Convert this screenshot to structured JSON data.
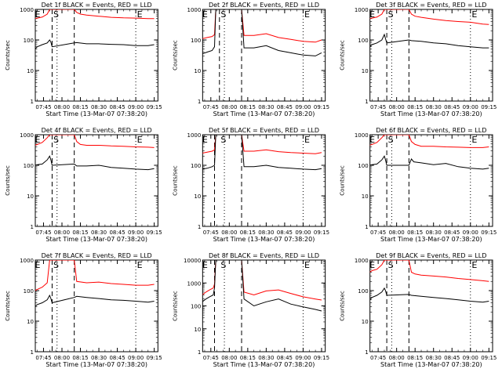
{
  "time_ticks": [
    "07:45",
    "08:00",
    "08:15",
    "08:30",
    "08:45",
    "09:00",
    "09:15"
  ],
  "y_ticks": [
    "1",
    "10",
    "100",
    "1000"
  ],
  "y_ticks_p8": [
    "1",
    "10",
    "100",
    "1000",
    "10000"
  ],
  "colors": {
    "events": "#000000",
    "lld": "#ff0000"
  },
  "chart_data": [
    {
      "type": "line",
      "scale": "log",
      "title": "Det 1f BLACK = Events, RED = LLD",
      "xlabel": "Start Time (13-Mar-07 07:38:20)",
      "ylabel": "Counts/sec",
      "ylim": [
        1,
        1000
      ],
      "markers": {
        "E": [
          "07:38",
          "09:01"
        ],
        "S": "07:53"
      },
      "dashed_lines": [
        "07:52",
        "08:10"
      ],
      "dotted_lines": [
        "07:56",
        "09:00"
      ],
      "series": [
        {
          "name": "Events",
          "x": [
            "07:38",
            "07:40",
            "07:44",
            "07:48",
            "07:50",
            "07:51",
            "07:52",
            "08:10",
            "08:12",
            "08:20",
            "08:30",
            "08:40",
            "08:50",
            "09:00",
            "09:10",
            "09:15"
          ],
          "values": [
            50,
            60,
            70,
            80,
            100,
            85,
            60,
            80,
            82,
            75,
            75,
            72,
            70,
            65,
            65,
            70
          ]
        },
        {
          "name": "LLD",
          "x": [
            "07:38",
            "07:40",
            "07:44",
            "07:48",
            "07:50",
            "07:51",
            "07:52",
            "08:10",
            "08:12",
            "08:15",
            "08:20",
            "08:30",
            "08:40",
            "08:50",
            "09:00",
            "09:10",
            "09:15"
          ],
          "values": [
            500,
            520,
            560,
            700,
            1000,
            1000,
            1000,
            1000,
            800,
            700,
            650,
            600,
            550,
            530,
            520,
            500,
            500
          ]
        }
      ]
    },
    {
      "type": "line",
      "scale": "log",
      "title": "Det 2f BLACK = Events, RED = LLD",
      "xlabel": "Start Time (13-Mar-07 07:38:20)",
      "ylabel": "Counts/sec",
      "ylim": [
        1,
        1000
      ],
      "markers": {
        "E": [
          "07:38",
          "09:01"
        ],
        "S": "07:53"
      },
      "dashed_lines": [
        "07:52",
        "08:10"
      ],
      "dotted_lines": [
        "07:56",
        "09:00"
      ],
      "series": [
        {
          "name": "Events",
          "x": [
            "07:38",
            "07:42",
            "07:46",
            "07:48",
            "07:49",
            "07:50",
            "08:00",
            "08:10",
            "08:12",
            "08:20",
            "08:30",
            "08:40",
            "08:50",
            "09:00",
            "09:10",
            "09:15"
          ],
          "values": [
            35,
            40,
            45,
            60,
            1000,
            1000,
            1000,
            1000,
            55,
            55,
            65,
            45,
            38,
            32,
            30,
            38
          ]
        },
        {
          "name": "LLD",
          "x": [
            "07:38",
            "07:42",
            "07:46",
            "07:48",
            "07:49",
            "07:50",
            "08:00",
            "08:10",
            "08:12",
            "08:20",
            "08:30",
            "08:40",
            "08:50",
            "09:00",
            "09:10",
            "09:15"
          ],
          "values": [
            110,
            120,
            130,
            150,
            1000,
            1000,
            1000,
            1000,
            140,
            140,
            160,
            120,
            105,
            90,
            85,
            100
          ]
        }
      ]
    },
    {
      "type": "line",
      "scale": "log",
      "title": "Det 3f BLACK = Events, RED = LLD",
      "xlabel": "Start Time (13-Mar-07 07:38:20)",
      "ylabel": "Counts/sec",
      "ylim": [
        1,
        1000
      ],
      "markers": {
        "E": [
          "07:38",
          "09:01"
        ],
        "S": "07:53"
      },
      "dashed_lines": [
        "07:52",
        "08:10"
      ],
      "dotted_lines": [
        "07:56",
        "09:00"
      ],
      "series": [
        {
          "name": "Events",
          "x": [
            "07:38",
            "07:40",
            "07:44",
            "07:48",
            "07:50",
            "07:51",
            "07:52",
            "08:10",
            "08:12",
            "08:20",
            "08:30",
            "08:40",
            "08:50",
            "09:00",
            "09:10",
            "09:15"
          ],
          "values": [
            60,
            70,
            80,
            100,
            150,
            110,
            80,
            100,
            95,
            90,
            80,
            75,
            65,
            60,
            55,
            55
          ]
        },
        {
          "name": "LLD",
          "x": [
            "07:38",
            "07:40",
            "07:44",
            "07:48",
            "07:50",
            "07:51",
            "07:52",
            "08:10",
            "08:12",
            "08:15",
            "08:20",
            "08:30",
            "08:40",
            "08:50",
            "09:00",
            "09:10",
            "09:15"
          ],
          "values": [
            500,
            520,
            560,
            700,
            1000,
            1000,
            1000,
            1000,
            700,
            600,
            550,
            480,
            430,
            400,
            380,
            330,
            320
          ]
        }
      ]
    },
    {
      "type": "line",
      "scale": "log",
      "title": "Det 4f BLACK = Events, RED = LLD",
      "xlabel": "Start Time (13-Mar-07 07:38:20)",
      "ylabel": "Counts/sec",
      "ylim": [
        1,
        1000
      ],
      "markers": {
        "E": [
          "07:38",
          "09:01"
        ],
        "S": "07:53"
      },
      "dashed_lines": [
        "07:52",
        "08:10"
      ],
      "dotted_lines": [
        "07:56",
        "09:00"
      ],
      "series": [
        {
          "name": "Events",
          "x": [
            "07:38",
            "07:40",
            "07:44",
            "07:48",
            "07:50",
            "07:51",
            "07:52",
            "08:10",
            "08:12",
            "08:20",
            "08:30",
            "08:40",
            "08:50",
            "09:00",
            "09:10",
            "09:15"
          ],
          "values": [
            100,
            105,
            110,
            150,
            200,
            150,
            100,
            110,
            95,
            95,
            100,
            85,
            80,
            75,
            72,
            78
          ]
        },
        {
          "name": "LLD",
          "x": [
            "07:38",
            "07:40",
            "07:44",
            "07:48",
            "07:50",
            "07:51",
            "07:52",
            "08:10",
            "08:12",
            "08:15",
            "08:20",
            "08:30",
            "08:40",
            "08:50",
            "09:00",
            "09:10",
            "09:15"
          ],
          "values": [
            450,
            480,
            560,
            800,
            1000,
            1000,
            1000,
            1000,
            600,
            480,
            450,
            450,
            430,
            420,
            400,
            390,
            380
          ]
        }
      ]
    },
    {
      "type": "line",
      "scale": "log",
      "title": "Det 5f BLACK = Events, RED = LLD",
      "xlabel": "Start Time (13-Mar-07 07:38:20)",
      "ylabel": "Counts/sec",
      "ylim": [
        1,
        1000
      ],
      "markers": {
        "E": [
          "07:38",
          "09:01"
        ],
        "S": "07:53"
      },
      "dashed_lines": [
        "07:48",
        "08:10"
      ],
      "dotted_lines": [
        "07:56",
        "09:00"
      ],
      "series": [
        {
          "name": "Events",
          "x": [
            "07:38",
            "07:42",
            "07:46",
            "07:48",
            "07:49",
            "07:50",
            "08:00",
            "08:10",
            "08:12",
            "08:20",
            "08:30",
            "08:40",
            "08:50",
            "09:00",
            "09:10",
            "09:15"
          ],
          "values": [
            75,
            80,
            90,
            100,
            1000,
            1000,
            1000,
            1000,
            90,
            90,
            100,
            85,
            80,
            75,
            72,
            78
          ]
        },
        {
          "name": "LLD",
          "x": [
            "07:38",
            "07:42",
            "07:46",
            "07:48",
            "07:49",
            "07:50",
            "08:00",
            "08:10",
            "08:12",
            "08:20",
            "08:30",
            "08:40",
            "08:50",
            "09:00",
            "09:10",
            "09:15"
          ],
          "values": [
            250,
            270,
            290,
            320,
            1000,
            1000,
            1000,
            1000,
            290,
            290,
            320,
            280,
            260,
            250,
            240,
            260
          ]
        }
      ]
    },
    {
      "type": "line",
      "scale": "log",
      "title": "Det 6f BLACK = Events, RED = LLD",
      "xlabel": "Start Time (13-Mar-07 07:38:20)",
      "ylabel": "Counts/sec",
      "ylim": [
        1,
        1000
      ],
      "markers": {
        "E": [
          "07:38",
          "09:01"
        ],
        "S": "07:53"
      },
      "dashed_lines": [
        "07:52",
        "08:10"
      ],
      "dotted_lines": [
        "07:56",
        "09:00"
      ],
      "series": [
        {
          "name": "Events",
          "x": [
            "07:38",
            "07:40",
            "07:44",
            "07:48",
            "07:50",
            "07:51",
            "07:52",
            "08:10",
            "08:12",
            "08:14",
            "08:20",
            "08:30",
            "08:40",
            "08:50",
            "09:00",
            "09:10",
            "09:15"
          ],
          "values": [
            100,
            105,
            110,
            150,
            200,
            150,
            100,
            100,
            160,
            130,
            120,
            105,
            115,
            90,
            80,
            75,
            80
          ]
        },
        {
          "name": "LLD",
          "x": [
            "07:38",
            "07:40",
            "07:44",
            "07:48",
            "07:50",
            "07:51",
            "07:52",
            "08:10",
            "08:12",
            "08:15",
            "08:20",
            "08:30",
            "08:40",
            "08:50",
            "09:00",
            "09:10",
            "09:15"
          ],
          "values": [
            450,
            480,
            560,
            800,
            1000,
            1000,
            1000,
            1000,
            600,
            480,
            420,
            420,
            400,
            390,
            380,
            380,
            400
          ]
        }
      ]
    },
    {
      "type": "line",
      "scale": "log",
      "title": "Det 7f BLACK = Events, RED = LLD",
      "xlabel": "Start Time (13-Mar-07 07:38:20)",
      "ylabel": "Counts/sec",
      "ylim": [
        1,
        1000
      ],
      "markers": {
        "E": [
          "07:38",
          "09:01"
        ],
        "S": "07:53"
      },
      "dashed_lines": [
        "07:52",
        "08:10"
      ],
      "dotted_lines": [
        "07:56",
        "09:00"
      ],
      "series": [
        {
          "name": "Events",
          "x": [
            "07:38",
            "07:40",
            "07:44",
            "07:48",
            "07:50",
            "07:51",
            "07:52",
            "08:10",
            "08:12",
            "08:20",
            "08:30",
            "08:40",
            "08:50",
            "09:00",
            "09:10",
            "09:15"
          ],
          "values": [
            30,
            35,
            40,
            50,
            70,
            55,
            40,
            60,
            65,
            60,
            55,
            50,
            48,
            45,
            42,
            45
          ]
        },
        {
          "name": "LLD",
          "x": [
            "07:38",
            "07:40",
            "07:44",
            "07:48",
            "07:50",
            "07:51",
            "07:52",
            "08:10",
            "08:12",
            "08:20",
            "08:30",
            "08:40",
            "08:50",
            "09:00",
            "09:10",
            "09:15"
          ],
          "values": [
            100,
            110,
            130,
            180,
            1000,
            1000,
            1000,
            1000,
            200,
            180,
            190,
            170,
            160,
            150,
            150,
            160
          ]
        }
      ]
    },
    {
      "type": "line",
      "scale": "log",
      "title": "Det 8f BLACK = Events, RED = LLD",
      "xlabel": "Start Time (13-Mar-07 07:38:20)",
      "ylabel": "Counts/sec",
      "ylim": [
        1,
        10000
      ],
      "markers": {
        "E": [
          "07:38",
          "09:01"
        ],
        "S": "07:53"
      },
      "dashed_lines": [
        "07:48",
        "08:10"
      ],
      "dotted_lines": [
        "07:56",
        "09:00"
      ],
      "series": [
        {
          "name": "Events",
          "x": [
            "07:38",
            "07:41",
            "07:44",
            "07:47",
            "07:48",
            "07:49",
            "07:50",
            "08:00",
            "08:10",
            "08:12",
            "08:20",
            "08:30",
            "08:40",
            "08:50",
            "09:00",
            "09:10",
            "09:15"
          ],
          "values": [
            150,
            200,
            250,
            300,
            600,
            10000,
            10000,
            10000,
            10000,
            200,
            100,
            150,
            200,
            120,
            90,
            70,
            60
          ]
        },
        {
          "name": "LLD",
          "x": [
            "07:38",
            "07:41",
            "07:44",
            "07:47",
            "07:48",
            "07:49",
            "07:50",
            "08:00",
            "08:10",
            "08:12",
            "08:20",
            "08:30",
            "08:40",
            "08:50",
            "09:00",
            "09:10",
            "09:15"
          ],
          "values": [
            300,
            400,
            500,
            600,
            900,
            10000,
            10000,
            10000,
            10000,
            400,
            300,
            450,
            500,
            350,
            250,
            200,
            180
          ]
        }
      ]
    },
    {
      "type": "line",
      "scale": "log",
      "title": "Det 9f BLACK = Events, RED = LLD",
      "xlabel": "Start Time (13-Mar-07 07:38:20)",
      "ylabel": "Counts/sec",
      "ylim": [
        1,
        1000
      ],
      "markers": {
        "E": [
          "07:38",
          "09:01"
        ],
        "S": "07:53"
      },
      "dashed_lines": [
        "07:52",
        "08:10"
      ],
      "dotted_lines": [
        "07:56",
        "09:00"
      ],
      "series": [
        {
          "name": "Events",
          "x": [
            "07:38",
            "07:40",
            "07:44",
            "07:48",
            "07:50",
            "07:51",
            "07:52",
            "08:10",
            "08:12",
            "08:20",
            "08:30",
            "08:40",
            "08:50",
            "09:00",
            "09:10",
            "09:15"
          ],
          "values": [
            50,
            60,
            70,
            90,
            120,
            100,
            70,
            75,
            70,
            65,
            60,
            55,
            50,
            45,
            42,
            45
          ]
        },
        {
          "name": "LLD",
          "x": [
            "07:38",
            "07:40",
            "07:44",
            "07:48",
            "07:50",
            "07:51",
            "07:52",
            "08:10",
            "08:12",
            "08:15",
            "08:20",
            "08:30",
            "08:40",
            "08:50",
            "09:00",
            "09:10",
            "09:15"
          ],
          "values": [
            400,
            450,
            500,
            700,
            1000,
            1000,
            1000,
            1000,
            400,
            350,
            320,
            300,
            280,
            250,
            230,
            210,
            200
          ]
        }
      ]
    }
  ]
}
